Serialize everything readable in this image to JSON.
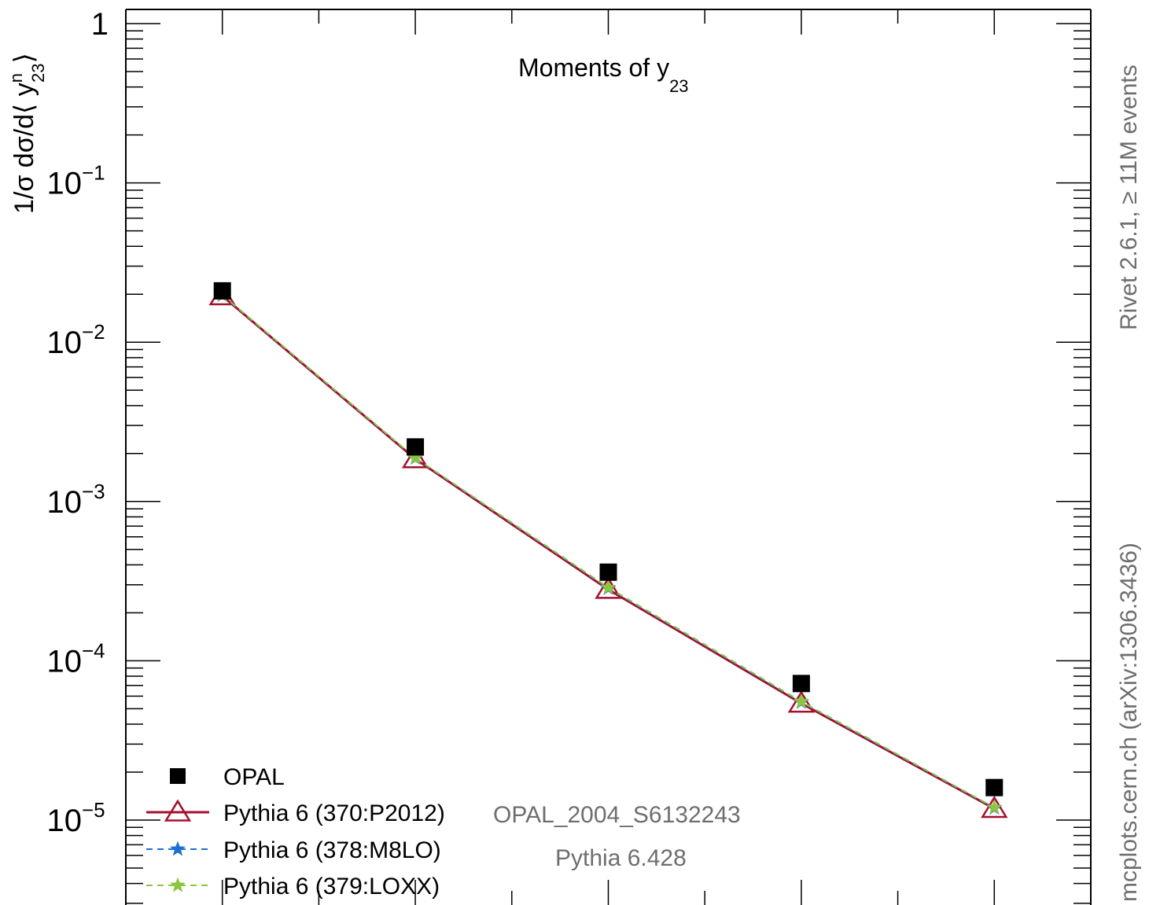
{
  "chart_data": {
    "type": "line",
    "title": "Moments of y",
    "title_subscript": "23",
    "ylabel": "1/σ dσ/d⟨ y",
    "ylabel_sub": "23",
    "ylabel_sup": "n",
    "ylabel_close": "⟩",
    "yscale": "log",
    "ylim": [
      4e-06,
      1
    ],
    "xlim": [
      0.5,
      5.5
    ],
    "x": [
      1,
      2,
      3,
      4,
      5
    ],
    "y_ticks": [
      {
        "value": 1,
        "base": "1",
        "exp": ""
      },
      {
        "value": 0.1,
        "base": "10",
        "exp": "−1"
      },
      {
        "value": 0.01,
        "base": "10",
        "exp": "−2"
      },
      {
        "value": 0.001,
        "base": "10",
        "exp": "−3"
      },
      {
        "value": 0.0001,
        "base": "10",
        "exp": "−4"
      },
      {
        "value": 1e-05,
        "base": "10",
        "exp": "−5"
      }
    ],
    "series": [
      {
        "name": "OPAL",
        "values": [
          0.021,
          0.0022,
          0.00036,
          7.2e-05,
          1.6e-05
        ],
        "color": "#000000",
        "marker": "square",
        "line": "none"
      },
      {
        "name": "Pythia 6 (370:P2012)",
        "values": [
          0.0195,
          0.00185,
          0.00028,
          5.4e-05,
          1.18e-05
        ],
        "color": "#a50f2d",
        "marker": "open-triangle",
        "line": "solid"
      },
      {
        "name": "Pythia 6 (378:M8LO)",
        "values": [
          0.0197,
          0.00187,
          0.000285,
          5.5e-05,
          1.19e-05
        ],
        "color": "#1f6fd1",
        "marker": "star",
        "line": "dashed"
      },
      {
        "name": "Pythia 6 (379:LOXX)",
        "values": [
          0.0198,
          0.00188,
          0.000288,
          5.55e-05,
          1.2e-05
        ],
        "color": "#8cc63f",
        "marker": "star",
        "line": "dashed"
      }
    ],
    "annotations": {
      "analysis": "OPAL_2004_S6132243",
      "generator": "Pythia 6.428",
      "right_upper": "Rivet 2.6.1, ≥ 11M events",
      "right_lower": "mcplots.cern.ch (arXiv:1306.3436)"
    },
    "legend_position": "bottom-left"
  }
}
